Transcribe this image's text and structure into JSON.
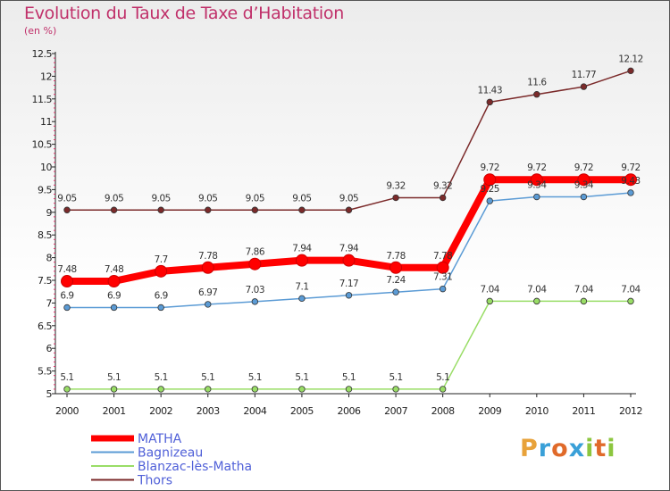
{
  "chart_data": {
    "type": "line",
    "title": "Evolution du Taux de Taxe d’Habitation",
    "unit_label": "(en %)",
    "xlabel": "",
    "ylabel": "",
    "x": [
      "2000",
      "2001",
      "2002",
      "2003",
      "2004",
      "2005",
      "2006",
      "2007",
      "2008",
      "2009",
      "2010",
      "2011",
      "2012"
    ],
    "ylim": [
      5,
      12.5
    ],
    "yticks": [
      "5",
      "5.5",
      "6",
      "6.5",
      "7",
      "7.5",
      "8",
      "8.5",
      "9",
      "9.5",
      "10",
      "10.5",
      "11",
      "11.5",
      "12",
      "12.5"
    ],
    "grid": false,
    "legend_placement": "bottom-left",
    "series": [
      {
        "name": "MATHA",
        "color": "#ff0000",
        "values": [
          7.48,
          7.48,
          7.7,
          7.78,
          7.86,
          7.94,
          7.94,
          7.78,
          7.78,
          9.72,
          9.72,
          9.72,
          9.72
        ],
        "labels": [
          "7.48",
          "7.48",
          "7.7",
          "7.78",
          "7.86",
          "7.94",
          "7.94",
          "7.78",
          "7.78",
          "9.72",
          "9.72",
          "9.72",
          "9.72"
        ]
      },
      {
        "name": "Bagnizeau",
        "color": "#5b9bd5",
        "values": [
          6.9,
          6.9,
          6.9,
          6.97,
          7.03,
          7.1,
          7.17,
          7.24,
          7.31,
          9.25,
          9.34,
          9.34,
          9.43
        ],
        "labels": [
          "6.9",
          "6.9",
          "6.9",
          "6.97",
          "7.03",
          "7.1",
          "7.17",
          "7.24",
          "7.31",
          "9.25",
          "9.34",
          "9.34",
          "9.43"
        ]
      },
      {
        "name": "Blanzac-lès-Matha",
        "color": "#99dd66",
        "values": [
          5.1,
          5.1,
          5.1,
          5.1,
          5.1,
          5.1,
          5.1,
          5.1,
          5.1,
          7.04,
          7.04,
          7.04,
          7.04
        ],
        "labels": [
          "5.1",
          "5.1",
          "5.1",
          "5.1",
          "5.1",
          "5.1",
          "5.1",
          "5.1",
          "5.1",
          "7.04",
          "7.04",
          "7.04",
          "7.04"
        ]
      },
      {
        "name": "Thors",
        "color": "#7b2a2a",
        "values": [
          9.05,
          9.05,
          9.05,
          9.05,
          9.05,
          9.05,
          9.05,
          9.32,
          9.32,
          11.43,
          11.6,
          11.77,
          12.12
        ],
        "labels": [
          "9.05",
          "9.05",
          "9.05",
          "9.05",
          "9.05",
          "9.05",
          "9.05",
          "9.32",
          "9.32",
          "11.43",
          "11.6",
          "11.77",
          "12.12"
        ]
      }
    ]
  },
  "branding": {
    "logo_text": "Proxiti"
  }
}
